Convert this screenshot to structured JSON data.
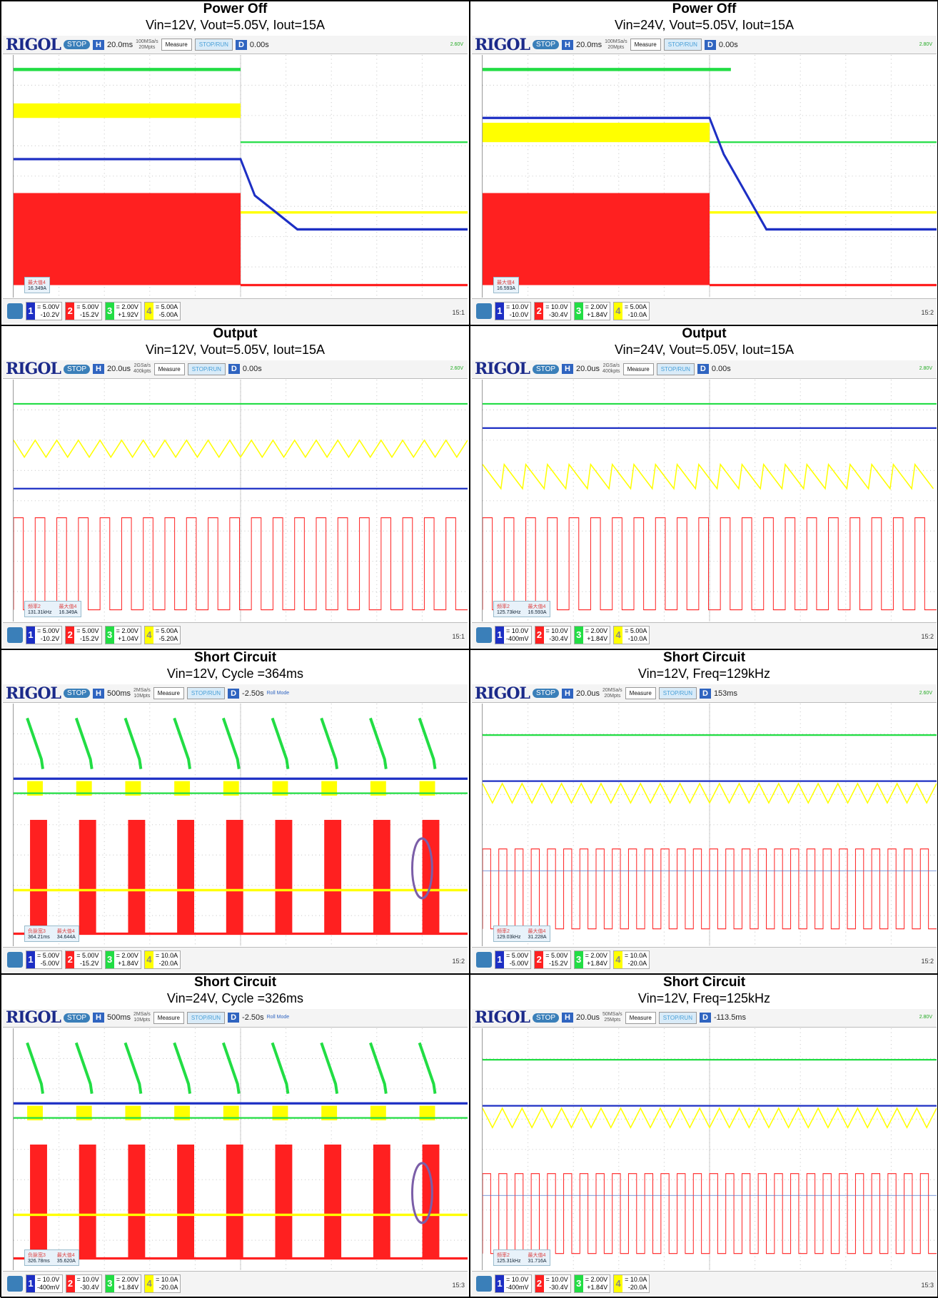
{
  "colors": {
    "ch1": "#1d2fc4",
    "ch2": "#ff2020",
    "ch3": "#22dd44",
    "ch4": "#ffff00",
    "grid": "#c8c8c8"
  },
  "scope": {
    "brand": "RIGOL",
    "state": "STOP",
    "measure_label": "Measure",
    "stoprun_label": "STOP/RUN"
  },
  "panels": [
    {
      "title": "Power Off",
      "subtitle": "Vin=12V, Vout=5.05V, Iout=15A",
      "hscale": "20.0ms",
      "srate": "100MSa/s",
      "depth": "20Mpts",
      "delay": "0.00s",
      "trig": "2.60V",
      "mode": "",
      "meas": [
        {
          "label": "最大值4",
          "value": "16.349A"
        }
      ],
      "ch": [
        [
          "5.00V",
          "-10.2V"
        ],
        [
          "5.00V",
          "-15.2V"
        ],
        [
          "2.00V",
          "+1.92V"
        ],
        [
          "5.00A",
          "-5.00A"
        ]
      ],
      "time": "15:1",
      "type": "poweroff12"
    },
    {
      "title": "Power Off",
      "subtitle": "Vin=24V, Vout=5.05V, Iout=15A",
      "hscale": "20.0ms",
      "srate": "100MSa/s",
      "depth": "20Mpts",
      "delay": "0.00s",
      "trig": "2.80V",
      "mode": "",
      "meas": [
        {
          "label": "最大值4",
          "value": "16.593A"
        }
      ],
      "ch": [
        [
          "10.0V",
          "-10.0V"
        ],
        [
          "10.0V",
          "-30.4V"
        ],
        [
          "2.00V",
          "+1.84V"
        ],
        [
          "5.00A",
          "-10.0A"
        ]
      ],
      "time": "15:2",
      "type": "poweroff24"
    },
    {
      "title": "Output",
      "subtitle": "Vin=12V, Vout=5.05V, Iout=15A",
      "hscale": "20.0us",
      "srate": "2GSa/s",
      "depth": "400kpts",
      "delay": "0.00s",
      "trig": "2.60V",
      "mode": "",
      "meas": [
        {
          "label": "频率2",
          "value": "131.31kHz"
        },
        {
          "label": "最大值4",
          "value": "16.349A"
        }
      ],
      "ch": [
        [
          "5.00V",
          "-10.2V"
        ],
        [
          "5.00V",
          "-15.2V"
        ],
        [
          "2.00V",
          "+1.04V"
        ],
        [
          "5.00A",
          "-5.20A"
        ]
      ],
      "time": "15:1",
      "type": "out12"
    },
    {
      "title": "Output",
      "subtitle": "Vin=24V, Vout=5.05V, Iout=15A",
      "hscale": "20.0us",
      "srate": "2GSa/s",
      "depth": "400kpts",
      "delay": "0.00s",
      "trig": "2.80V",
      "mode": "",
      "meas": [
        {
          "label": "频率2",
          "value": "125.73kHz"
        },
        {
          "label": "最大值4",
          "value": "16.593A"
        }
      ],
      "ch": [
        [
          "10.0V",
          "-400mV"
        ],
        [
          "10.0V",
          "-30.4V"
        ],
        [
          "2.00V",
          "+1.84V"
        ],
        [
          "5.00A",
          "-10.0A"
        ]
      ],
      "time": "15:2",
      "type": "out24"
    },
    {
      "title": "Short Circuit",
      "subtitle": "Vin=12V, Cycle =364ms",
      "hscale": "500ms",
      "srate": "2MSa/s",
      "depth": "10Mpts",
      "delay": "-2.50s",
      "trig": "",
      "mode": "Roll Mode",
      "meas": [
        {
          "label": "负脉宽3",
          "value": "364.21ms"
        },
        {
          "label": "最大值4",
          "value": "34.644A"
        }
      ],
      "ch": [
        [
          "5.00V",
          "-5.00V"
        ],
        [
          "5.00V",
          "-15.2V"
        ],
        [
          "2.00V",
          "+1.84V"
        ],
        [
          "10.0A",
          "-20.0A"
        ]
      ],
      "time": "15:2",
      "type": "sc12"
    },
    {
      "title": "Short Circuit",
      "subtitle": "Vin=12V, Freq=129kHz",
      "hscale": "20.0us",
      "srate": "20MSa/s",
      "depth": "20Mpts",
      "delay": "153ms",
      "trig": "2.60V",
      "mode": "",
      "meas": [
        {
          "label": "频率2",
          "value": "129.03kHz"
        },
        {
          "label": "最大值4",
          "value": "31.228A"
        }
      ],
      "ch": [
        [
          "5.00V",
          "-5.00V"
        ],
        [
          "5.00V",
          "-15.2V"
        ],
        [
          "2.00V",
          "+1.84V"
        ],
        [
          "10.0A",
          "-20.0A"
        ]
      ],
      "time": "15:2",
      "type": "scz12"
    },
    {
      "title": "Short Circuit",
      "subtitle": "Vin=24V, Cycle =326ms",
      "hscale": "500ms",
      "srate": "2MSa/s",
      "depth": "10Mpts",
      "delay": "-2.50s",
      "trig": "",
      "mode": "Roll Mode",
      "meas": [
        {
          "label": "负脉宽3",
          "value": "326.78ms"
        },
        {
          "label": "最大值4",
          "value": "35.620A"
        }
      ],
      "ch": [
        [
          "10.0V",
          "-400mV"
        ],
        [
          "10.0V",
          "-30.4V"
        ],
        [
          "2.00V",
          "+1.84V"
        ],
        [
          "10.0A",
          "-20.0A"
        ]
      ],
      "time": "15:3",
      "type": "sc24"
    },
    {
      "title": "Short Circuit",
      "subtitle": "Vin=12V, Freq=125kHz",
      "hscale": "20.0us",
      "srate": "50MSa/s",
      "depth": "25Mpts",
      "delay": "-113.5ms",
      "trig": "2.80V",
      "mode": "",
      "meas": [
        {
          "label": "频率2",
          "value": "125.31kHz"
        },
        {
          "label": "最大值4",
          "value": "31.716A"
        }
      ],
      "ch": [
        [
          "10.0V",
          "-400mV"
        ],
        [
          "10.0V",
          "-30.4V"
        ],
        [
          "2.00V",
          "+1.84V"
        ],
        [
          "10.0A",
          "-20.0A"
        ]
      ],
      "time": "15:3",
      "type": "scz24"
    }
  ]
}
